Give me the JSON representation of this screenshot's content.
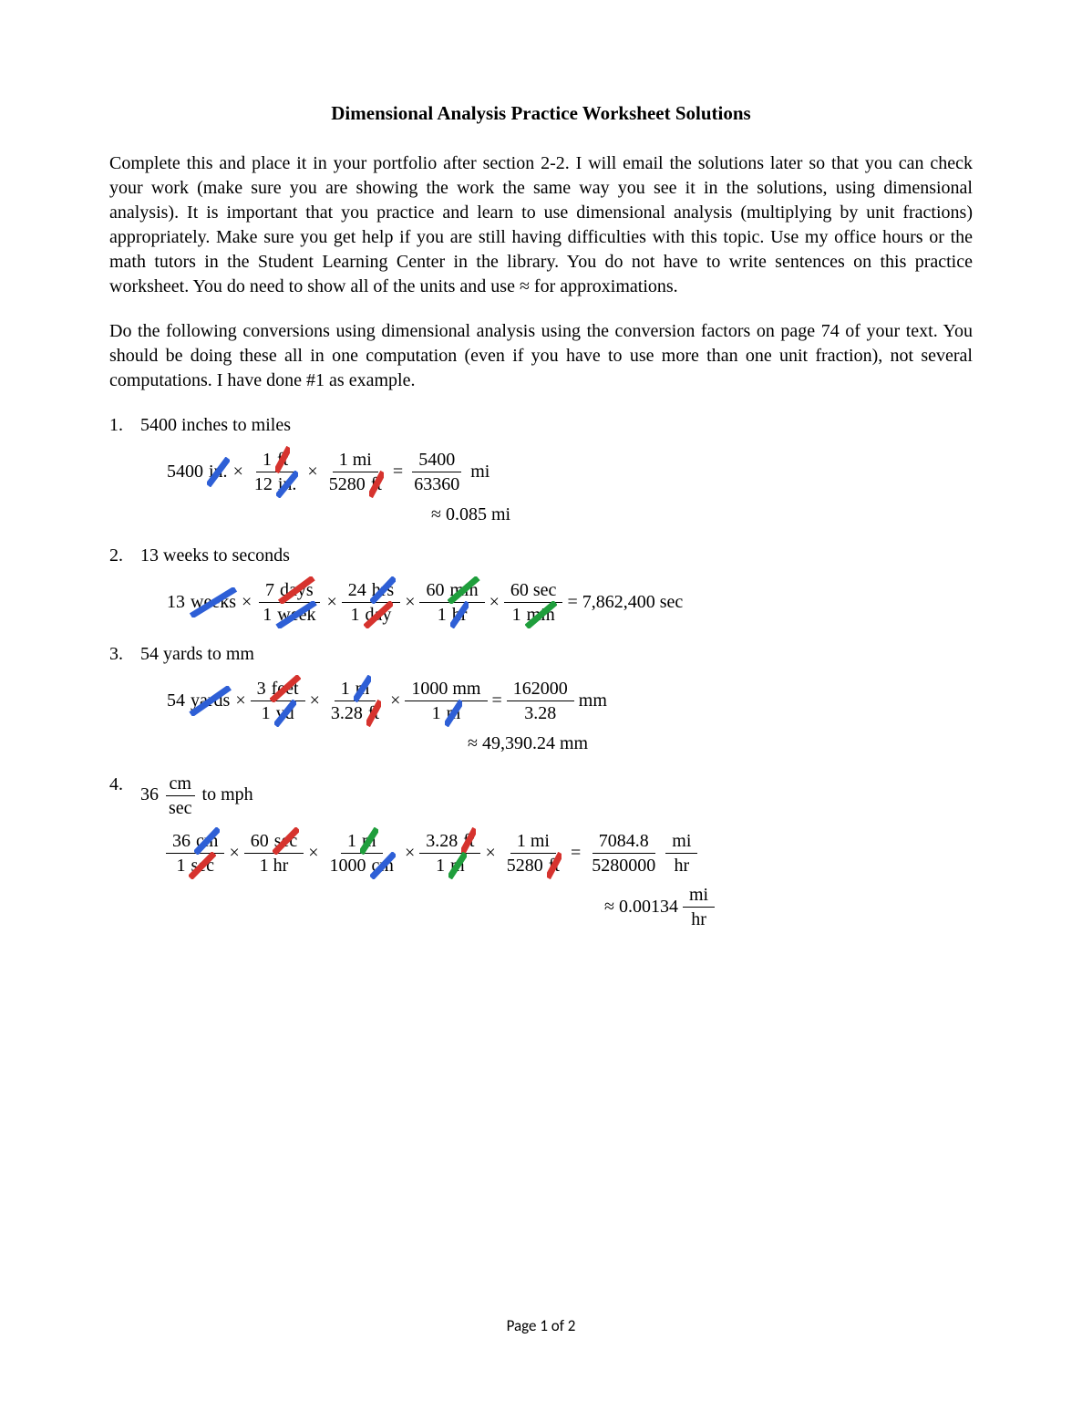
{
  "title": "Dimensional Analysis Practice Worksheet Solutions",
  "para1": "Complete this and place it in your portfolio after section 2-2. I will email the solutions later so that you can check your work (make sure you are showing the work the same way you see it in the solutions, using dimensional analysis). It is important that you practice and learn to use dimensional analysis (multiplying by unit fractions) appropriately. Make sure you get help if you are still having difficulties with this topic. Use my office hours or the math tutors in the Student Learning Center in the library. You do not have to write sentences on this practice worksheet. You do need to show all of the units and use ≈ for approximations.",
  "para2": "Do the following conversions using dimensional analysis using the conversion factors on page 74 of your text. You should be doing these all in one computation (even if you have to use more than one unit fraction), not several computations. I have done #1 as example.",
  "colors": {
    "blue": "#2e5fd6",
    "red": "#d6332e",
    "green": "#1f9e3c"
  },
  "problems": [
    {
      "num": "1.",
      "text": "5400 inches to miles",
      "rows": [
        [
          {
            "t": "tok",
            "v": "5400"
          },
          {
            "t": "strike",
            "v": "in.",
            "c": "blue"
          },
          {
            "t": "tok",
            "v": "×"
          },
          {
            "t": "frac",
            "num": [
              {
                "t": "tok",
                "v": "1"
              },
              {
                "t": "strike",
                "v": "ft",
                "c": "red"
              }
            ],
            "den": [
              {
                "t": "tok",
                "v": "12"
              },
              {
                "t": "strike",
                "v": "in.",
                "c": "blue"
              }
            ]
          },
          {
            "t": "tok",
            "v": "×"
          },
          {
            "t": "frac",
            "num": [
              {
                "t": "tok",
                "v": "1 mi"
              }
            ],
            "den": [
              {
                "t": "tok",
                "v": "5280"
              },
              {
                "t": "strike",
                "v": "ft",
                "c": "red"
              }
            ]
          },
          {
            "t": "tok",
            "v": "="
          },
          {
            "t": "frac",
            "num": [
              {
                "t": "tok",
                "v": "5400"
              }
            ],
            "den": [
              {
                "t": "tok",
                "v": "63360"
              }
            ]
          },
          {
            "t": "tok",
            "v": " mi"
          }
        ],
        [
          {
            "t": "tok",
            "v": "≈ 0.085 mi",
            "indent": 290
          }
        ]
      ]
    },
    {
      "num": "2.",
      "text": "13 weeks to seconds",
      "rows": [
        [
          {
            "t": "tok",
            "v": "13"
          },
          {
            "t": "strike",
            "v": "weeks",
            "c": "blue"
          },
          {
            "t": "tok",
            "v": "×"
          },
          {
            "t": "frac",
            "num": [
              {
                "t": "tok",
                "v": "7"
              },
              {
                "t": "strike",
                "v": "days",
                "c": "red"
              }
            ],
            "den": [
              {
                "t": "tok",
                "v": "1"
              },
              {
                "t": "strike",
                "v": "week",
                "c": "blue"
              }
            ]
          },
          {
            "t": "tok",
            "v": "×"
          },
          {
            "t": "frac",
            "num": [
              {
                "t": "tok",
                "v": "24"
              },
              {
                "t": "strike",
                "v": "hrs",
                "c": "blue"
              }
            ],
            "den": [
              {
                "t": "tok",
                "v": "1"
              },
              {
                "t": "strike",
                "v": "day",
                "c": "red"
              }
            ]
          },
          {
            "t": "tok",
            "v": "×"
          },
          {
            "t": "frac",
            "num": [
              {
                "t": "tok",
                "v": "60"
              },
              {
                "t": "strike",
                "v": "min",
                "c": "green"
              }
            ],
            "den": [
              {
                "t": "tok",
                "v": "1"
              },
              {
                "t": "strike",
                "v": "hr",
                "c": "blue"
              }
            ]
          },
          {
            "t": "tok",
            "v": "×"
          },
          {
            "t": "frac",
            "num": [
              {
                "t": "tok",
                "v": "60 sec"
              }
            ],
            "den": [
              {
                "t": "tok",
                "v": "1"
              },
              {
                "t": "strike",
                "v": "min",
                "c": "green"
              }
            ]
          },
          {
            "t": "tok",
            "v": "= 7,862,400 sec"
          }
        ]
      ]
    },
    {
      "num": "3.",
      "text": "54 yards to mm",
      "rows": [
        [
          {
            "t": "tok",
            "v": "54"
          },
          {
            "t": "strike",
            "v": "yards",
            "c": "blue"
          },
          {
            "t": "tok",
            "v": "×"
          },
          {
            "t": "frac",
            "num": [
              {
                "t": "tok",
                "v": "3"
              },
              {
                "t": "strike",
                "v": "feet",
                "c": "red"
              }
            ],
            "den": [
              {
                "t": "tok",
                "v": "1"
              },
              {
                "t": "strike",
                "v": "yd",
                "c": "blue"
              }
            ]
          },
          {
            "t": "tok",
            "v": "×"
          },
          {
            "t": "frac",
            "num": [
              {
                "t": "tok",
                "v": "1"
              },
              {
                "t": "strike",
                "v": "m",
                "c": "blue"
              }
            ],
            "den": [
              {
                "t": "tok",
                "v": "3.28"
              },
              {
                "t": "strike",
                "v": "ft",
                "c": "red"
              }
            ]
          },
          {
            "t": "tok",
            "v": "×"
          },
          {
            "t": "frac",
            "num": [
              {
                "t": "tok",
                "v": "1000 mm"
              }
            ],
            "den": [
              {
                "t": "tok",
                "v": "1"
              },
              {
                "t": "strike",
                "v": "m",
                "c": "blue"
              }
            ]
          },
          {
            "t": "tok",
            "v": "="
          },
          {
            "t": "frac",
            "num": [
              {
                "t": "tok",
                "v": "162000"
              }
            ],
            "den": [
              {
                "t": "tok",
                "v": "3.28"
              }
            ]
          },
          {
            "t": "tok",
            "v": " mm"
          }
        ],
        [
          {
            "t": "tok",
            "v": "≈ 49,390.24 mm",
            "indent": 330
          }
        ]
      ]
    },
    {
      "num": "4.",
      "text_frac": {
        "lead": "36 ",
        "num": "cm",
        "den": "sec",
        "tail": "  to mph"
      },
      "rows": [
        [
          {
            "t": "frac",
            "num": [
              {
                "t": "tok",
                "v": "36"
              },
              {
                "t": "strike",
                "v": "cm",
                "c": "blue"
              }
            ],
            "den": [
              {
                "t": "tok",
                "v": "1"
              },
              {
                "t": "strike",
                "v": "sec",
                "c": "red"
              }
            ]
          },
          {
            "t": "tok",
            "v": "×"
          },
          {
            "t": "frac",
            "num": [
              {
                "t": "tok",
                "v": "60"
              },
              {
                "t": "strike",
                "v": "sec",
                "c": "red"
              }
            ],
            "den": [
              {
                "t": "tok",
                "v": "1 hr"
              }
            ]
          },
          {
            "t": "tok",
            "v": "×"
          },
          {
            "t": "frac",
            "num": [
              {
                "t": "tok",
                "v": "1"
              },
              {
                "t": "strike",
                "v": "m",
                "c": "green"
              }
            ],
            "den": [
              {
                "t": "tok",
                "v": "1000"
              },
              {
                "t": "strike",
                "v": "cm",
                "c": "blue"
              }
            ]
          },
          {
            "t": "tok",
            "v": "×"
          },
          {
            "t": "frac",
            "num": [
              {
                "t": "tok",
                "v": "3.28"
              },
              {
                "t": "strike",
                "v": "ft",
                "c": "red"
              }
            ],
            "den": [
              {
                "t": "tok",
                "v": "1"
              },
              {
                "t": "strike",
                "v": "m",
                "c": "green"
              }
            ]
          },
          {
            "t": "tok",
            "v": "×"
          },
          {
            "t": "frac",
            "num": [
              {
                "t": "tok",
                "v": "1 mi"
              }
            ],
            "den": [
              {
                "t": "tok",
                "v": "5280"
              },
              {
                "t": "strike",
                "v": "ft",
                "c": "red"
              }
            ]
          },
          {
            "t": "tok",
            "v": "="
          },
          {
            "t": "frac",
            "num": [
              {
                "t": "tok",
                "v": "7084.8"
              }
            ],
            "den": [
              {
                "t": "tok",
                "v": "5280000"
              }
            ]
          },
          {
            "t": "frac",
            "num": [
              {
                "t": "tok",
                "v": "mi"
              }
            ],
            "den": [
              {
                "t": "tok",
                "v": "hr"
              }
            ]
          }
        ],
        [
          {
            "t": "tok",
            "v": "≈ 0.00134",
            "indent": 480
          },
          {
            "t": "frac",
            "num": [
              {
                "t": "tok",
                "v": "mi"
              }
            ],
            "den": [
              {
                "t": "tok",
                "v": "hr"
              }
            ]
          }
        ]
      ]
    }
  ],
  "footer": "Page 1 of 2"
}
